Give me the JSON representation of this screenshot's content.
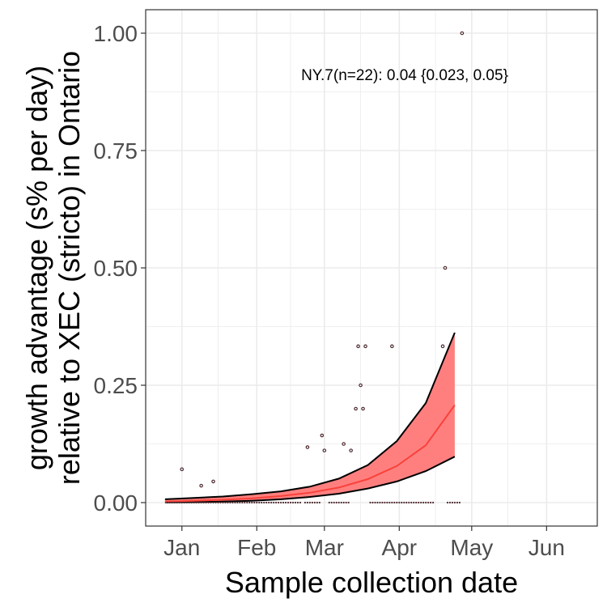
{
  "chart_data": {
    "type": "scatter",
    "title": "",
    "xlabel": "Sample collection date",
    "ylabel_line1": "growth advantage (s% per day)",
    "ylabel_line2": "relative to XEC (stricto) in Ontario",
    "annotation": "NY.7(n=22): 0.04 {0.023, 0.05}",
    "xlim": [
      "2024-12-17",
      "2025-06-22"
    ],
    "ylim": [
      -0.05,
      1.05
    ],
    "x_ticks": [
      {
        "date": "2025-01-01",
        "label": "Jan"
      },
      {
        "date": "2025-02-01",
        "label": "Feb"
      },
      {
        "date": "2025-03-01",
        "label": "Mar"
      },
      {
        "date": "2025-04-01",
        "label": "Apr"
      },
      {
        "date": "2025-05-01",
        "label": "May"
      },
      {
        "date": "2025-06-01",
        "label": "Jun"
      }
    ],
    "y_ticks": [
      {
        "value": 0.0,
        "label": "0.00"
      },
      {
        "value": 0.25,
        "label": "0.25"
      },
      {
        "value": 0.5,
        "label": "0.50"
      },
      {
        "value": 0.75,
        "label": "0.75"
      },
      {
        "value": 1.0,
        "label": "1.00"
      }
    ],
    "grid": true,
    "colors": {
      "fit_line": "#f8423a",
      "ribbon_fill": "#ff7f7f",
      "ribbon_border": "#000000",
      "point_stroke": "#4d2a2e",
      "grid": "#ebebeb",
      "panel_border": "#333333"
    },
    "fit": {
      "x": [
        "2024-12-25",
        "2025-01-06",
        "2025-01-18",
        "2025-01-30",
        "2025-02-11",
        "2025-02-23",
        "2025-03-07",
        "2025-03-19",
        "2025-03-31",
        "2025-04-12",
        "2025-04-24"
      ],
      "y": [
        0.002,
        0.004,
        0.006,
        0.009,
        0.014,
        0.021,
        0.032,
        0.05,
        0.078,
        0.122,
        0.208
      ],
      "lower": [
        0.0005,
        0.001,
        0.002,
        0.004,
        0.007,
        0.012,
        0.019,
        0.03,
        0.045,
        0.067,
        0.098
      ],
      "upper": [
        0.007,
        0.01,
        0.013,
        0.018,
        0.024,
        0.034,
        0.051,
        0.08,
        0.131,
        0.212,
        0.362
      ]
    },
    "points": [
      {
        "date": "2025-01-01",
        "value": 0.071
      },
      {
        "date": "2025-01-09",
        "value": 0.036
      },
      {
        "date": "2025-01-14",
        "value": 0.045
      },
      {
        "date": "2025-02-22",
        "value": 0.118
      },
      {
        "date": "2025-02-28",
        "value": 0.143
      },
      {
        "date": "2025-03-01",
        "value": 0.111
      },
      {
        "date": "2025-03-09",
        "value": 0.125
      },
      {
        "date": "2025-03-12",
        "value": 0.111
      },
      {
        "date": "2025-03-14",
        "value": 0.2
      },
      {
        "date": "2025-03-15",
        "value": 0.333
      },
      {
        "date": "2025-03-16",
        "value": 0.25
      },
      {
        "date": "2025-03-17",
        "value": 0.2
      },
      {
        "date": "2025-03-18",
        "value": 0.333
      },
      {
        "date": "2025-03-29",
        "value": 0.333
      },
      {
        "date": "2025-04-19",
        "value": 0.333
      },
      {
        "date": "2025-04-20",
        "value": 0.5
      },
      {
        "date": "2025-04-27",
        "value": 1.0
      }
    ],
    "zero_points_ranges": [
      [
        "2024-12-26",
        "2025-02-19"
      ],
      [
        "2025-02-21",
        "2025-02-27"
      ],
      [
        "2025-03-03",
        "2025-03-11"
      ],
      [
        "2025-03-20",
        "2025-04-15"
      ],
      [
        "2025-04-21",
        "2025-04-26"
      ]
    ]
  }
}
